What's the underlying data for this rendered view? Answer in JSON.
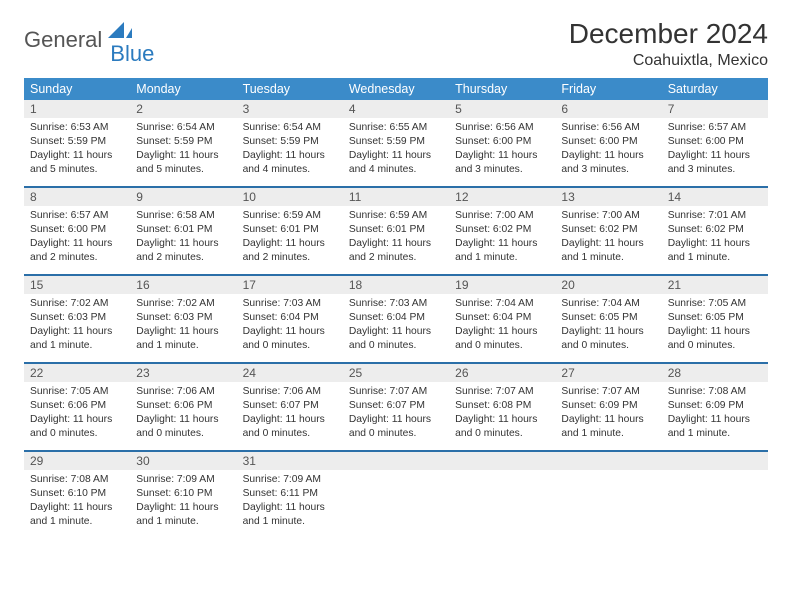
{
  "logo": {
    "word1": "General",
    "word2": "Blue"
  },
  "title": "December 2024",
  "subtitle": "Coahuixtla, Mexico",
  "colors": {
    "header_bg": "#3b8bc9",
    "week_border": "#2b6fa8",
    "daynum_bg": "#ededed",
    "logo_gray": "#555555",
    "logo_blue": "#2b7bbf"
  },
  "weekdays": [
    "Sunday",
    "Monday",
    "Tuesday",
    "Wednesday",
    "Thursday",
    "Friday",
    "Saturday"
  ],
  "weeks": [
    [
      {
        "n": "1",
        "sr": "6:53 AM",
        "ss": "5:59 PM",
        "dl": "11 hours and 5 minutes."
      },
      {
        "n": "2",
        "sr": "6:54 AM",
        "ss": "5:59 PM",
        "dl": "11 hours and 5 minutes."
      },
      {
        "n": "3",
        "sr": "6:54 AM",
        "ss": "5:59 PM",
        "dl": "11 hours and 4 minutes."
      },
      {
        "n": "4",
        "sr": "6:55 AM",
        "ss": "5:59 PM",
        "dl": "11 hours and 4 minutes."
      },
      {
        "n": "5",
        "sr": "6:56 AM",
        "ss": "6:00 PM",
        "dl": "11 hours and 3 minutes."
      },
      {
        "n": "6",
        "sr": "6:56 AM",
        "ss": "6:00 PM",
        "dl": "11 hours and 3 minutes."
      },
      {
        "n": "7",
        "sr": "6:57 AM",
        "ss": "6:00 PM",
        "dl": "11 hours and 3 minutes."
      }
    ],
    [
      {
        "n": "8",
        "sr": "6:57 AM",
        "ss": "6:00 PM",
        "dl": "11 hours and 2 minutes."
      },
      {
        "n": "9",
        "sr": "6:58 AM",
        "ss": "6:01 PM",
        "dl": "11 hours and 2 minutes."
      },
      {
        "n": "10",
        "sr": "6:59 AM",
        "ss": "6:01 PM",
        "dl": "11 hours and 2 minutes."
      },
      {
        "n": "11",
        "sr": "6:59 AM",
        "ss": "6:01 PM",
        "dl": "11 hours and 2 minutes."
      },
      {
        "n": "12",
        "sr": "7:00 AM",
        "ss": "6:02 PM",
        "dl": "11 hours and 1 minute."
      },
      {
        "n": "13",
        "sr": "7:00 AM",
        "ss": "6:02 PM",
        "dl": "11 hours and 1 minute."
      },
      {
        "n": "14",
        "sr": "7:01 AM",
        "ss": "6:02 PM",
        "dl": "11 hours and 1 minute."
      }
    ],
    [
      {
        "n": "15",
        "sr": "7:02 AM",
        "ss": "6:03 PM",
        "dl": "11 hours and 1 minute."
      },
      {
        "n": "16",
        "sr": "7:02 AM",
        "ss": "6:03 PM",
        "dl": "11 hours and 1 minute."
      },
      {
        "n": "17",
        "sr": "7:03 AM",
        "ss": "6:04 PM",
        "dl": "11 hours and 0 minutes."
      },
      {
        "n": "18",
        "sr": "7:03 AM",
        "ss": "6:04 PM",
        "dl": "11 hours and 0 minutes."
      },
      {
        "n": "19",
        "sr": "7:04 AM",
        "ss": "6:04 PM",
        "dl": "11 hours and 0 minutes."
      },
      {
        "n": "20",
        "sr": "7:04 AM",
        "ss": "6:05 PM",
        "dl": "11 hours and 0 minutes."
      },
      {
        "n": "21",
        "sr": "7:05 AM",
        "ss": "6:05 PM",
        "dl": "11 hours and 0 minutes."
      }
    ],
    [
      {
        "n": "22",
        "sr": "7:05 AM",
        "ss": "6:06 PM",
        "dl": "11 hours and 0 minutes."
      },
      {
        "n": "23",
        "sr": "7:06 AM",
        "ss": "6:06 PM",
        "dl": "11 hours and 0 minutes."
      },
      {
        "n": "24",
        "sr": "7:06 AM",
        "ss": "6:07 PM",
        "dl": "11 hours and 0 minutes."
      },
      {
        "n": "25",
        "sr": "7:07 AM",
        "ss": "6:07 PM",
        "dl": "11 hours and 0 minutes."
      },
      {
        "n": "26",
        "sr": "7:07 AM",
        "ss": "6:08 PM",
        "dl": "11 hours and 0 minutes."
      },
      {
        "n": "27",
        "sr": "7:07 AM",
        "ss": "6:09 PM",
        "dl": "11 hours and 1 minute."
      },
      {
        "n": "28",
        "sr": "7:08 AM",
        "ss": "6:09 PM",
        "dl": "11 hours and 1 minute."
      }
    ],
    [
      {
        "n": "29",
        "sr": "7:08 AM",
        "ss": "6:10 PM",
        "dl": "11 hours and 1 minute."
      },
      {
        "n": "30",
        "sr": "7:09 AM",
        "ss": "6:10 PM",
        "dl": "11 hours and 1 minute."
      },
      {
        "n": "31",
        "sr": "7:09 AM",
        "ss": "6:11 PM",
        "dl": "11 hours and 1 minute."
      },
      null,
      null,
      null,
      null
    ]
  ],
  "labels": {
    "sunrise": "Sunrise:",
    "sunset": "Sunset:",
    "daylight": "Daylight:"
  }
}
